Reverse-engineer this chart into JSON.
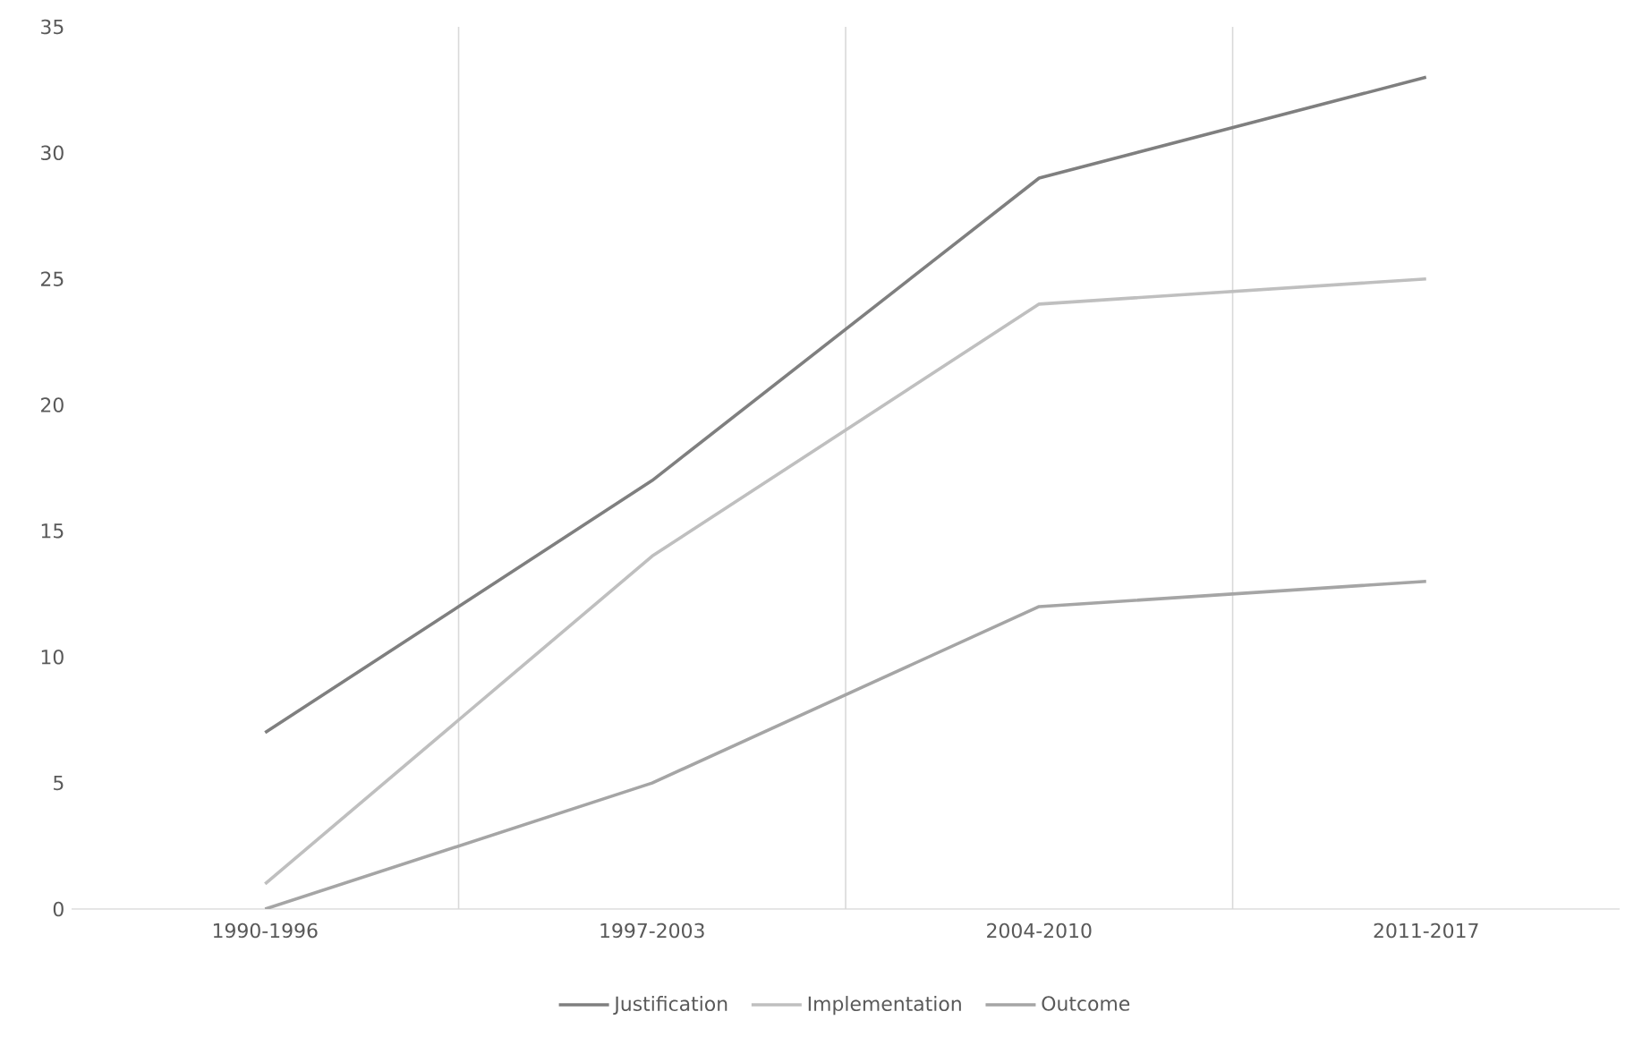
{
  "chart_data": {
    "type": "line",
    "categories": [
      "1990-1996",
      "1997-2003",
      "2004-2010",
      "2011-2017"
    ],
    "series": [
      {
        "name": "Justification",
        "color": "#7f7f7f",
        "values": [
          7,
          17,
          29,
          33
        ]
      },
      {
        "name": "Implementation",
        "color": "#bfbfbf",
        "values": [
          1,
          14,
          24,
          25
        ]
      },
      {
        "name": "Outcome",
        "color": "#a5a5a5",
        "values": [
          0,
          5,
          12,
          13
        ]
      }
    ],
    "ylim": [
      0,
      35
    ],
    "yticks": [
      0,
      5,
      10,
      15,
      20,
      25,
      30,
      35
    ],
    "grid": "x",
    "legend": "bottom",
    "marker": "none",
    "line_style": "solid"
  }
}
